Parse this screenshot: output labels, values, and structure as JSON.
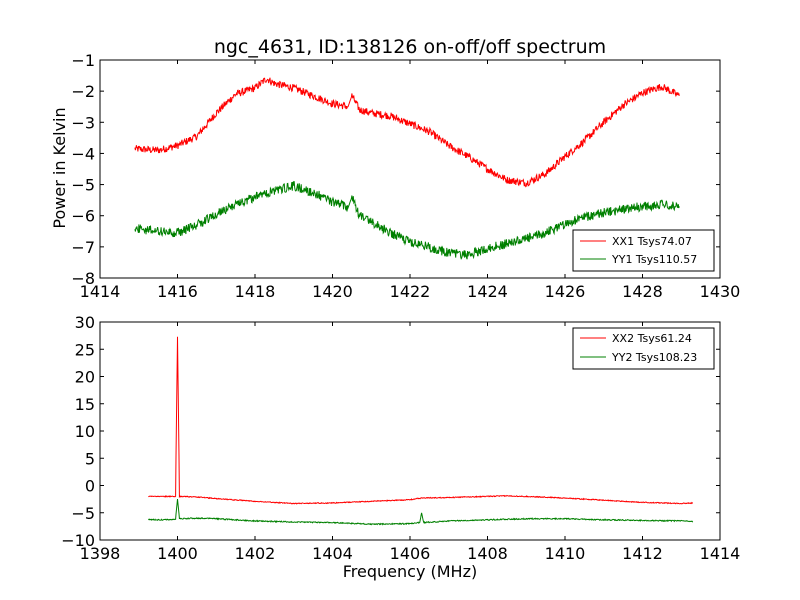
{
  "colors": {
    "background": "#ffffff",
    "xx": "#ff0000",
    "yy": "#008000",
    "axes": "#000000"
  },
  "chart_data": [
    {
      "type": "line",
      "title": "ngc_4631, ID:138126 on-off/off spectrum",
      "xlabel": "",
      "ylabel": "Power in Kelvin",
      "xlim": [
        1414,
        1430
      ],
      "ylim": [
        -8,
        -1
      ],
      "xticks": [
        1414,
        1416,
        1418,
        1420,
        1422,
        1424,
        1426,
        1428,
        1430
      ],
      "yticks": [
        -8,
        -7,
        -6,
        -5,
        -4,
        -3,
        -2,
        -1
      ],
      "legend_location": "lower-right",
      "grid": false,
      "series": [
        {
          "name": "XX1 Tsys74.07",
          "color": "#ff0000",
          "noise": 0.12,
          "x": [
            1414.9,
            1415.5,
            1416.0,
            1416.5,
            1417.0,
            1417.5,
            1418.0,
            1418.3,
            1418.5,
            1419.0,
            1419.5,
            1420.0,
            1420.4,
            1420.5,
            1420.7,
            1421.0,
            1421.5,
            1422.0,
            1422.5,
            1423.0,
            1423.5,
            1424.0,
            1424.5,
            1425.0,
            1425.5,
            1426.0,
            1426.5,
            1427.0,
            1427.5,
            1428.0,
            1428.5,
            1428.95
          ],
          "y": [
            -3.85,
            -3.9,
            -3.75,
            -3.45,
            -2.7,
            -2.1,
            -1.9,
            -1.6,
            -1.75,
            -1.9,
            -2.15,
            -2.4,
            -2.5,
            -2.15,
            -2.6,
            -2.7,
            -2.8,
            -3.05,
            -3.3,
            -3.75,
            -4.1,
            -4.5,
            -4.85,
            -4.95,
            -4.65,
            -4.1,
            -3.6,
            -3.0,
            -2.45,
            -2.05,
            -1.85,
            -2.15
          ]
        },
        {
          "name": "YY1 Tsys110.57",
          "color": "#008000",
          "noise": 0.15,
          "x": [
            1414.9,
            1415.5,
            1416.0,
            1416.5,
            1417.0,
            1417.5,
            1418.0,
            1418.5,
            1419.0,
            1419.5,
            1420.0,
            1420.4,
            1420.5,
            1420.7,
            1421.0,
            1421.5,
            1422.0,
            1422.5,
            1423.0,
            1423.5,
            1424.0,
            1424.5,
            1425.0,
            1425.5,
            1426.0,
            1426.5,
            1427.0,
            1427.5,
            1428.0,
            1428.5,
            1428.95
          ],
          "y": [
            -6.4,
            -6.5,
            -6.55,
            -6.3,
            -5.95,
            -5.65,
            -5.4,
            -5.2,
            -5.05,
            -5.25,
            -5.55,
            -5.75,
            -5.4,
            -6.0,
            -6.2,
            -6.55,
            -6.85,
            -7.0,
            -7.2,
            -7.25,
            -7.05,
            -6.9,
            -6.75,
            -6.55,
            -6.25,
            -6.05,
            -5.9,
            -5.8,
            -5.7,
            -5.65,
            -5.7
          ]
        }
      ]
    },
    {
      "type": "line",
      "title": "",
      "xlabel": "Frequency (MHz)",
      "ylabel": "",
      "xlim": [
        1398,
        1414
      ],
      "ylim": [
        -10,
        30
      ],
      "xticks": [
        1398,
        1400,
        1402,
        1404,
        1406,
        1408,
        1410,
        1412,
        1414
      ],
      "yticks": [
        -10,
        -5,
        0,
        5,
        10,
        15,
        20,
        25,
        30
      ],
      "legend_location": "upper-right",
      "grid": false,
      "series": [
        {
          "name": "XX2 Tsys61.24",
          "color": "#ff0000",
          "noise": 0.08,
          "x": [
            1399.25,
            1399.5,
            1399.95,
            1400.0,
            1400.05,
            1400.5,
            1401.0,
            1402.0,
            1403.0,
            1404.0,
            1405.0,
            1406.0,
            1406.3,
            1407.0,
            1408.0,
            1408.5,
            1409.0,
            1410.0,
            1411.0,
            1412.0,
            1413.0,
            1413.3
          ],
          "y": [
            -2.0,
            -2.0,
            -2.0,
            27.3,
            -2.0,
            -2.1,
            -2.4,
            -2.9,
            -3.3,
            -3.2,
            -2.9,
            -2.6,
            -2.3,
            -2.2,
            -2.0,
            -1.9,
            -2.0,
            -2.3,
            -2.7,
            -3.1,
            -3.3,
            -3.2
          ]
        },
        {
          "name": "YY2 Tsys108.23",
          "color": "#008000",
          "noise": 0.1,
          "x": [
            1399.25,
            1399.5,
            1399.95,
            1400.0,
            1400.05,
            1400.5,
            1401.0,
            1402.0,
            1403.0,
            1404.0,
            1405.0,
            1406.0,
            1406.25,
            1406.3,
            1406.35,
            1407.0,
            1408.0,
            1409.0,
            1410.0,
            1411.0,
            1412.0,
            1413.0,
            1413.3
          ],
          "y": [
            -6.2,
            -6.3,
            -6.2,
            -2.5,
            -6.1,
            -6.0,
            -6.1,
            -6.5,
            -6.7,
            -6.8,
            -7.1,
            -7.0,
            -6.8,
            -5.0,
            -6.8,
            -6.5,
            -6.3,
            -6.1,
            -6.1,
            -6.3,
            -6.4,
            -6.5,
            -6.6
          ]
        }
      ]
    }
  ]
}
